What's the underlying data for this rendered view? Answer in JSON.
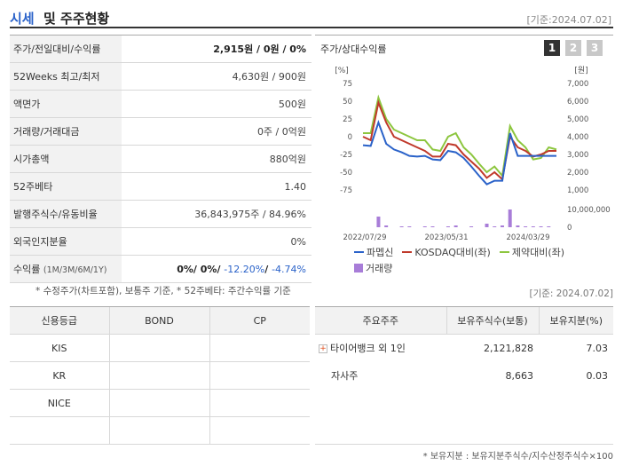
{
  "header": {
    "title_a": "시세",
    "title_b": "및 주주현황",
    "date": "[기준:2024.07.02]"
  },
  "info": {
    "rows": [
      {
        "label": "주가/전일대비/수익률",
        "value_main": "2,915",
        "value_rest": "원 / 0원 / 0%"
      },
      {
        "label": "52Weeks 최고/최저",
        "value": "4,630원 / 900원"
      },
      {
        "label": "액면가",
        "value": "500원"
      },
      {
        "label": "거래량/거래대금",
        "value": "0주 / 0억원"
      },
      {
        "label": "시가총액",
        "value": "880억원"
      },
      {
        "label": "52주베타",
        "value": "1.40"
      },
      {
        "label": "발행주식수/유동비율",
        "value": "36,843,975주 / 84.96%"
      },
      {
        "label": "외국인지분율",
        "value": "0%"
      }
    ],
    "return_row": {
      "label": "수익률",
      "label_sub": "(1M/3M/6M/1Y)",
      "v1": "0%",
      "v2": "0%",
      "v3": "-12.20%",
      "v4": "-4.74%"
    }
  },
  "note1": "* 수정주가(차트포함), 보통주 기준, * 52주베타: 주간수익률 기준",
  "chart_title": "주가/상대수익률",
  "tabs": [
    "1",
    "2",
    "3"
  ],
  "chart_data": {
    "type": "line",
    "left_unit": "[%]",
    "right_unit": "[원]",
    "left_ticks": [
      "75",
      "50",
      "25",
      "0",
      "-25",
      "-50",
      "-75"
    ],
    "right_ticks": [
      "7,000",
      "6,000",
      "5,000",
      "4,000",
      "3,000",
      "2,000",
      "1,000"
    ],
    "volume_ticks": [
      "10,000,000",
      "0"
    ],
    "x_ticks": [
      "2022/07/29",
      "2023/05/31",
      "2024/03/29"
    ],
    "ylim_left": [
      -75,
      75
    ],
    "series": [
      {
        "name": "파멥신",
        "color": "#2a62c9",
        "values": [
          -12,
          -13,
          20,
          -10,
          -18,
          -22,
          -27,
          -28,
          -27,
          -32,
          -33,
          -20,
          -22,
          -30,
          -42,
          -55,
          -67,
          -62,
          -62,
          5,
          -27,
          -27,
          -27,
          -27,
          -27,
          -27
        ]
      },
      {
        "name": "KOSDAQ대비(좌)",
        "color": "#c0392b",
        "values": [
          0,
          -5,
          48,
          20,
          0,
          -5,
          -10,
          -15,
          -20,
          -28,
          -28,
          -10,
          -12,
          -25,
          -35,
          -45,
          -58,
          -50,
          -60,
          0,
          -15,
          -20,
          -28,
          -25,
          -20,
          -20
        ]
      },
      {
        "name": "제약대비(좌)",
        "color": "#8dc63f",
        "values": [
          5,
          5,
          55,
          25,
          10,
          5,
          0,
          -5,
          -5,
          -18,
          -20,
          0,
          5,
          -15,
          -25,
          -38,
          -50,
          -42,
          -55,
          15,
          -5,
          -15,
          -32,
          -30,
          -15,
          -18
        ]
      }
    ],
    "volume_series": {
      "name": "거래량",
      "color": "#a87dd8",
      "values": [
        0,
        0,
        0.6,
        0.1,
        0,
        0.05,
        0.05,
        0,
        0.05,
        0.05,
        0,
        0.05,
        0.1,
        0,
        0.05,
        0,
        0.2,
        0.05,
        0.1,
        1.0,
        0.1,
        0.05,
        0.05,
        0.05,
        0.05,
        0
      ]
    }
  },
  "date2": "[기준: 2024.07.02]",
  "credit": {
    "headers": [
      "신용등급",
      "BOND",
      "CP"
    ],
    "rows": [
      [
        "KIS",
        "",
        ""
      ],
      [
        "KR",
        "",
        ""
      ],
      [
        "NICE",
        "",
        ""
      ],
      [
        "",
        "",
        ""
      ]
    ]
  },
  "shareholders": {
    "headers": [
      "주요주주",
      "보유주식수(보통)",
      "보유지분(%)"
    ],
    "rows": [
      {
        "name": "타이어뱅크 외 1인",
        "shares": "2,121,828",
        "pct": "7.03",
        "expandable": true
      },
      {
        "name": "자사주",
        "shares": "8,663",
        "pct": "0.03",
        "expandable": false
      }
    ]
  },
  "note2": "* 보유지분 : 보유지분주식수/지수산정주식수×100"
}
